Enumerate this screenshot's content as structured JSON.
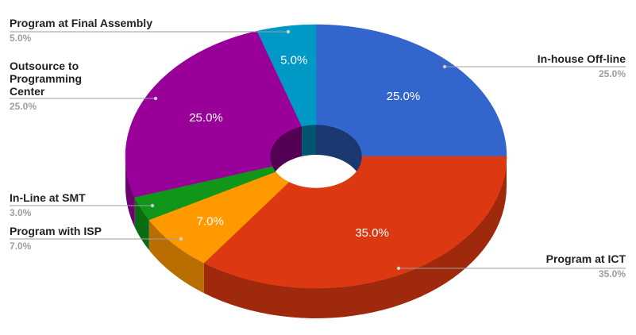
{
  "chart_data": {
    "type": "pie",
    "variant": "3d-donut",
    "title": "",
    "slices": [
      {
        "name": "In-house Off-line",
        "value": 25.0,
        "label": "25.0%",
        "color": "#3366cc"
      },
      {
        "name": "Program at ICT",
        "value": 35.0,
        "label": "35.0%",
        "color": "#dc3912"
      },
      {
        "name": "Program with ISP",
        "value": 7.0,
        "label": "7.0%",
        "color": "#ff9900"
      },
      {
        "name": "In-Line at SMT",
        "value": 3.0,
        "label": "",
        "color": "#109618"
      },
      {
        "name": "Outsource to Programming Center",
        "value": 25.0,
        "label": "25.0%",
        "color": "#990099"
      },
      {
        "name": "Program at Final Assembly",
        "value": 5.0,
        "label": "5.0%",
        "color": "#0099c6"
      }
    ],
    "callouts": [
      {
        "lines": [
          "Program at Final Assembly"
        ],
        "pct": "5.0%"
      },
      {
        "lines": [
          "Outsource to",
          "Programming",
          "Center"
        ],
        "pct": "25.0%"
      },
      {
        "lines": [
          "In-Line at SMT"
        ],
        "pct": "3.0%"
      },
      {
        "lines": [
          "Program with ISP"
        ],
        "pct": "7.0%"
      },
      {
        "lines": [
          "In-house Off-line"
        ],
        "pct": "25.0%"
      },
      {
        "lines": [
          "Program at ICT"
        ],
        "pct": "35.0%"
      }
    ],
    "legend": "callouts"
  }
}
